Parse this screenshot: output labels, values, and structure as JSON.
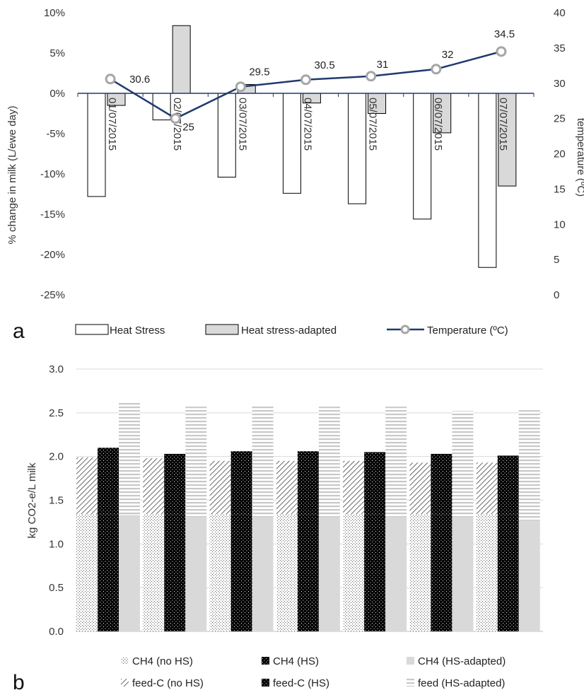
{
  "chart_data": [
    {
      "panel_label": "a",
      "type": "bar",
      "categories": [
        "01/07/2015",
        "02/07/2015",
        "03/07/2015",
        "04/07/2015",
        "05/07/2015",
        "06/07/2015",
        "07/07/2015"
      ],
      "ylabel": "% change in milk (L/ewe day)",
      "y2label": "temperature (ºC)",
      "ylim": [
        -25,
        10
      ],
      "y2lim": [
        0,
        40
      ],
      "yticks": [
        "10%",
        "5%",
        "0%",
        "-5%",
        "-10%",
        "-15%",
        "-20%",
        "-25%"
      ],
      "y2ticks": [
        "40",
        "35",
        "30",
        "25",
        "20",
        "15",
        "10",
        "5",
        "0"
      ],
      "legend_position": "bottom",
      "series": [
        {
          "name": "Heat Stress",
          "kind": "bar",
          "axis": "left",
          "values": [
            -12.8,
            -3.3,
            -10.4,
            -12.4,
            -13.7,
            -15.6,
            -21.6
          ],
          "color": "#ffffff"
        },
        {
          "name": "Heat stress-adapted",
          "kind": "bar",
          "axis": "left",
          "values": [
            -1.5,
            8.4,
            1.1,
            -1.2,
            -2.5,
            -4.9,
            -11.5
          ],
          "color": "#d9d9d9"
        },
        {
          "name": "Temperature (ºC)",
          "kind": "line",
          "axis": "right",
          "values": [
            30.6,
            25,
            29.5,
            30.5,
            31,
            32,
            34.5
          ],
          "labels": [
            "30.6",
            "25",
            "29.5",
            "30.5",
            "31",
            "32",
            "34.5"
          ],
          "color": "#1f3a6e"
        }
      ]
    },
    {
      "panel_label": "b",
      "type": "bar",
      "stacked": true,
      "groups": 7,
      "ylabel": "kg CO2-e/L milk",
      "ylim": [
        0,
        3
      ],
      "yticks": [
        "0.0",
        "0.5",
        "1.0",
        "1.5",
        "2.0",
        "2.5",
        "3.0"
      ],
      "grid": true,
      "legend_position": "bottom",
      "bars": [
        {
          "scenario": "no HS",
          "segments": [
            {
              "name": "CH4 (no HS)",
              "values": [
                1.34,
                1.34,
                1.34,
                1.34,
                1.34,
                1.34,
                1.34
              ]
            },
            {
              "name": "feed-C (no HS)",
              "values": [
                0.65,
                0.64,
                0.61,
                0.61,
                0.61,
                0.59,
                0.59
              ]
            }
          ]
        },
        {
          "scenario": "HS",
          "segments": [
            {
              "name": "CH4 (HS)",
              "values": [
                1.34,
                1.34,
                1.34,
                1.34,
                1.34,
                1.34,
                1.34
              ]
            },
            {
              "name": "feed-C (HS)",
              "values": [
                0.76,
                0.69,
                0.72,
                0.72,
                0.71,
                0.69,
                0.67
              ]
            }
          ]
        },
        {
          "scenario": "HS-adapted",
          "segments": [
            {
              "name": "CH4 (HS-adapted)",
              "values": [
                1.33,
                1.31,
                1.31,
                1.31,
                1.31,
                1.31,
                1.27
              ]
            },
            {
              "name": "feed (HS-adapted)",
              "values": [
                1.3,
                1.26,
                1.28,
                1.26,
                1.26,
                1.21,
                1.26
              ]
            }
          ]
        }
      ],
      "legend": [
        "CH4 (no HS)",
        "CH4 (HS)",
        "CH4 (HS-adapted)",
        "feed-C (no HS)",
        "feed-C (HS)",
        "feed (HS-adapted)"
      ]
    }
  ]
}
